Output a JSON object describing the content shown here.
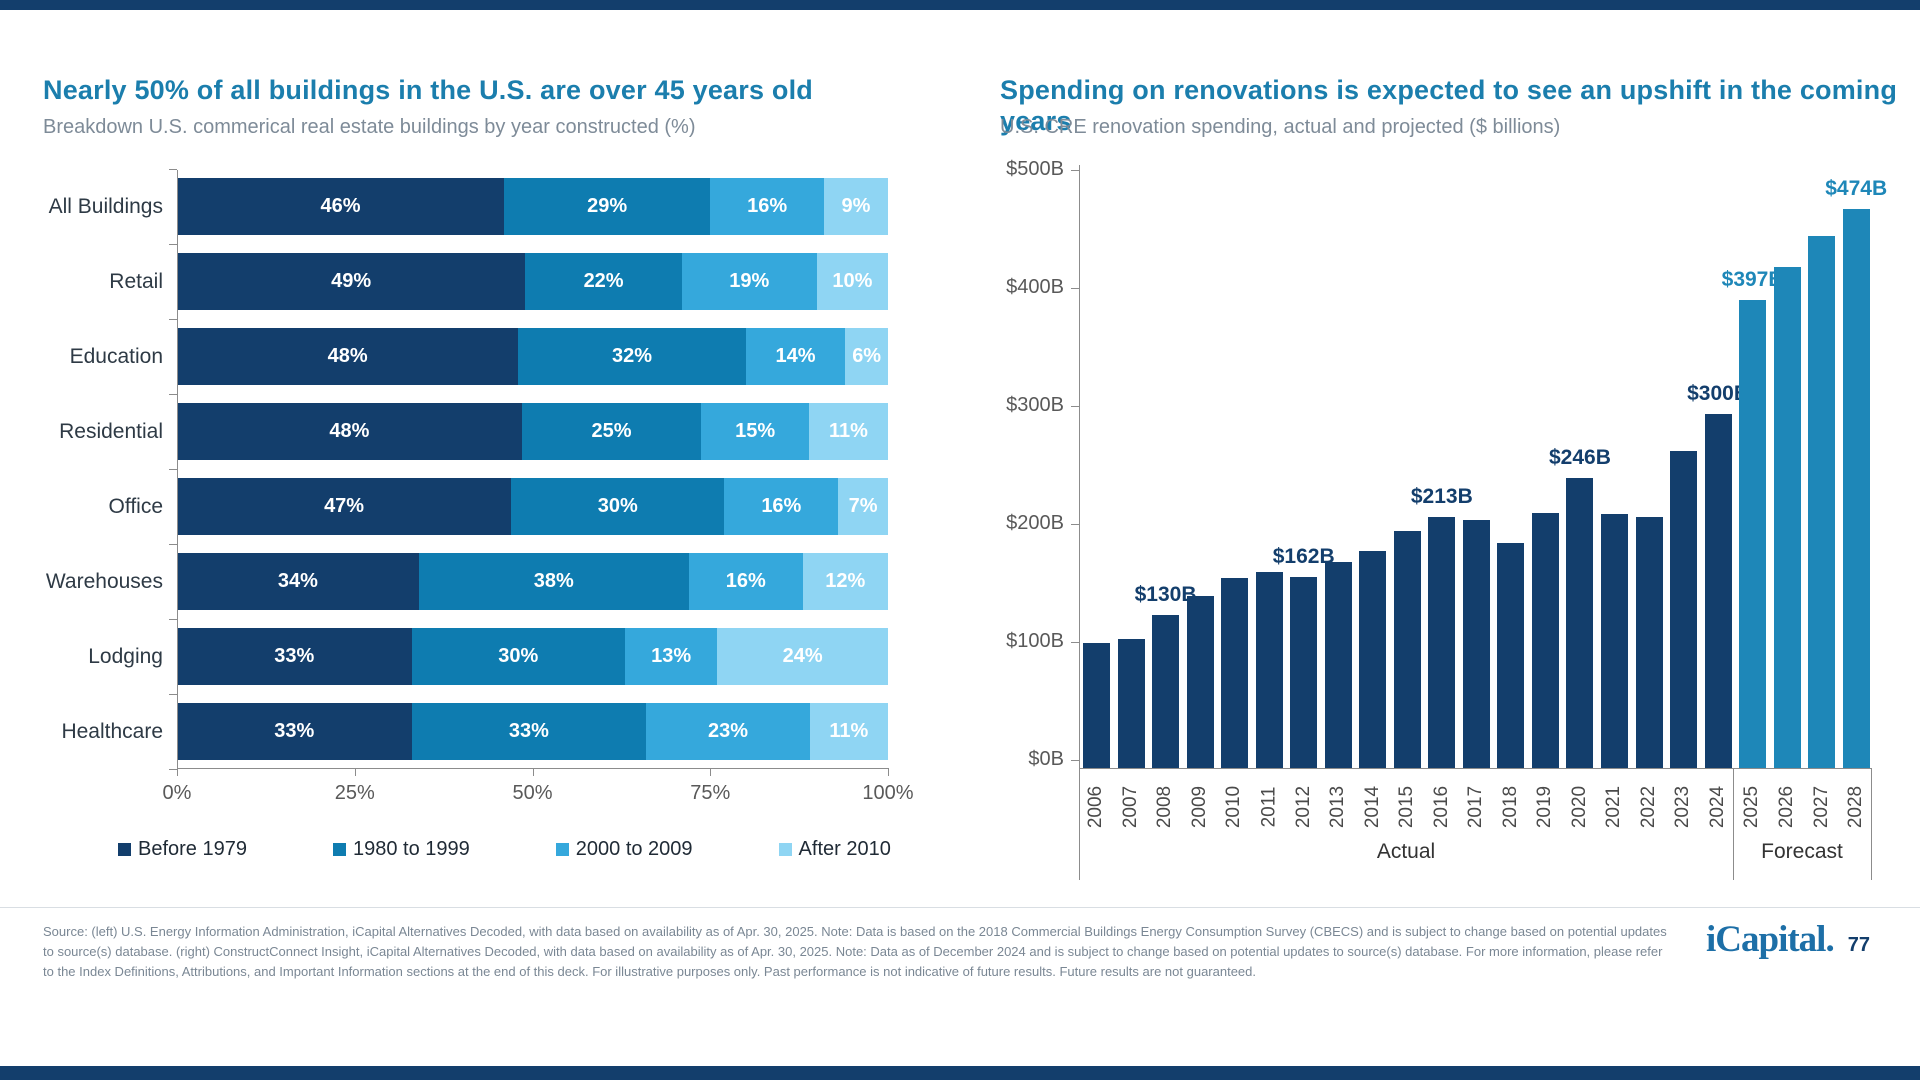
{
  "chart_data": [
    {
      "type": "bar",
      "orientation": "horizontal-stacked",
      "title": "Nearly 50% of all buildings in the U.S. are over 45 years old",
      "subtitle": "Breakdown U.S. commerical real estate buildings by year constructed (%)",
      "categories": [
        "All Buildings",
        "Retail",
        "Education",
        "Residential",
        "Office",
        "Warehouses",
        "Lodging",
        "Healthcare"
      ],
      "series": [
        {
          "name": "Before 1979",
          "color": "#133E6C",
          "values": [
            46,
            49,
            48,
            48,
            47,
            34,
            33,
            33
          ]
        },
        {
          "name": "1980 to 1999",
          "color": "#0E7CB0",
          "values": [
            29,
            22,
            32,
            25,
            30,
            38,
            30,
            33
          ]
        },
        {
          "name": "2000 to 2009",
          "color": "#35A8DC",
          "values": [
            16,
            19,
            14,
            15,
            16,
            16,
            13,
            23
          ]
        },
        {
          "name": "After 2010",
          "color": "#8FD5F3",
          "values": [
            9,
            10,
            6,
            11,
            7,
            12,
            24,
            11
          ]
        }
      ],
      "value_suffix": "%",
      "xlim": [
        0,
        100
      ],
      "x_ticks": [
        "0%",
        "25%",
        "50%",
        "75%",
        "100%"
      ],
      "legend_position": "bottom",
      "grid": false
    },
    {
      "type": "bar",
      "title": "Spending on renovations is expected to see an upshift in the coming years",
      "subtitle": "U.S. CRE renovation spending, actual and projected ($ billions)",
      "x": [
        "2006",
        "2007",
        "2008",
        "2009",
        "2010",
        "2011",
        "2012",
        "2013",
        "2014",
        "2015",
        "2016",
        "2017",
        "2018",
        "2019",
        "2020",
        "2021",
        "2022",
        "2023",
        "2024",
        "2025",
        "2026",
        "2027",
        "2028"
      ],
      "values": [
        106,
        109,
        130,
        146,
        161,
        166,
        162,
        175,
        184,
        201,
        213,
        210,
        191,
        216,
        246,
        215,
        213,
        269,
        300,
        397,
        425,
        451,
        474
      ],
      "data_labels": [
        null,
        null,
        "$130B",
        null,
        null,
        null,
        "$162B",
        null,
        null,
        null,
        "$213B",
        null,
        null,
        null,
        "$246B",
        null,
        null,
        null,
        "$300B",
        "$397B",
        null,
        null,
        "$474B"
      ],
      "forecast_start_index": 19,
      "actual_color": "#133E6C",
      "forecast_color": "#1E87B8",
      "ylim": [
        0,
        500
      ],
      "y_ticks": [
        "$500B",
        "$400B",
        "$300B",
        "$200B",
        "$100B",
        "$0B"
      ],
      "group_labels": {
        "actual": "Actual",
        "forecast": "Forecast"
      },
      "grid": false
    }
  ],
  "footer": {
    "source_text": "Source: (left) U.S. Energy Information Administration, iCapital Alternatives Decoded, with data based on availability as of Apr. 30, 2025. Note: Data is based on the 2018 Commercial Buildings Energy Consumption Survey (CBECS) and is subject to change based on potential updates to source(s) database. (right) ConstructConnect Insight, iCapital Alternatives Decoded, with data based on availability as of Apr. 30, 2025. Note: Data as of December 2024 and is subject to change based on potential updates to source(s) database. For more information, please refer to the Index Definitions, Attributions, and Important Information sections at the end of this deck. For illustrative purposes only. Past performance is not indicative of future results. Future results are not guaranteed."
  },
  "branding": {
    "logo_text": "iCapital.",
    "page_number": "77",
    "brand_colors": {
      "navy": "#133E6C",
      "title_blue": "#1B7EAD",
      "logo_blue": "#1D6FA7"
    }
  }
}
